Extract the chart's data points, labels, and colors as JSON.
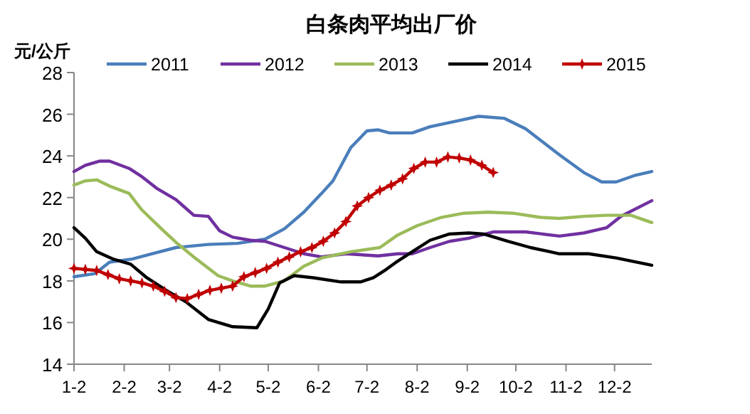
{
  "chart_data": {
    "type": "line",
    "title": "白条肉平均出厂价",
    "ylabel": "元/公斤",
    "xlim": [
      "--01-02",
      "--12-25"
    ],
    "ylim": [
      14,
      28
    ],
    "yticks": [
      14,
      16,
      18,
      20,
      22,
      24,
      26,
      28
    ],
    "xticks": [
      {
        "value": "--01-02",
        "label": "1-2"
      },
      {
        "value": "--02-02",
        "label": "2-2"
      },
      {
        "value": "--03-02",
        "label": "3-2"
      },
      {
        "value": "--04-02",
        "label": "4-2"
      },
      {
        "value": "--05-02",
        "label": "5-2"
      },
      {
        "value": "--06-02",
        "label": "6-2"
      },
      {
        "value": "--07-02",
        "label": "7-2"
      },
      {
        "value": "--08-02",
        "label": "8-2"
      },
      {
        "value": "--09-02",
        "label": "9-2"
      },
      {
        "value": "--10-02",
        "label": "10-2"
      },
      {
        "value": "--11-02",
        "label": "11-2"
      },
      {
        "value": "--12-02",
        "label": "12-2"
      }
    ],
    "grid": false,
    "legend": "top",
    "marker": "none",
    "line_style": "solid",
    "series": [
      {
        "name": "2011",
        "color": "#4a7ebb",
        "x": [
          "--01-02",
          "--01-15",
          "--01-24",
          "--02-07",
          "--02-19",
          "--03-06",
          "--03-26",
          "--04-13",
          "--04-30",
          "--05-12",
          "--05-24",
          "--06-04",
          "--06-11",
          "--06-22",
          "--07-02",
          "--07-09",
          "--07-16",
          "--07-30",
          "--08-10",
          "--08-25",
          "--09-09",
          "--09-25",
          "--10-08",
          "--10-29",
          "--11-13",
          "--11-24",
          "--12-03",
          "--12-14",
          "--12-25"
        ],
        "values": [
          18.2,
          18.35,
          18.9,
          19.05,
          19.3,
          19.6,
          19.75,
          19.8,
          20.0,
          20.5,
          21.3,
          22.2,
          22.8,
          24.4,
          25.2,
          25.25,
          25.1,
          25.1,
          25.4,
          25.65,
          25.9,
          25.8,
          25.3,
          24.05,
          23.2,
          22.75,
          22.75,
          23.05,
          23.25
        ]
      },
      {
        "name": "2012",
        "color": "#7030a0",
        "x": [
          "--01-02",
          "--01-09",
          "--01-18",
          "--01-24",
          "--02-05",
          "--02-13",
          "--02-22",
          "--03-06",
          "--03-17",
          "--03-26",
          "--04-02",
          "--04-10",
          "--04-21",
          "--04-30",
          "--05-12",
          "--05-24",
          "--06-04",
          "--06-19",
          "--07-09",
          "--07-21",
          "--07-30",
          "--08-10",
          "--08-22",
          "--09-03",
          "--09-18",
          "--10-08",
          "--10-29",
          "--11-13",
          "--11-27",
          "--12-06",
          "--12-25"
        ],
        "values": [
          23.25,
          23.55,
          23.75,
          23.75,
          23.4,
          23.0,
          22.45,
          21.9,
          21.15,
          21.1,
          20.4,
          20.1,
          19.95,
          19.9,
          19.6,
          19.3,
          19.15,
          19.3,
          19.2,
          19.3,
          19.3,
          19.6,
          19.9,
          20.05,
          20.35,
          20.35,
          20.15,
          20.3,
          20.55,
          21.1,
          21.85
        ]
      },
      {
        "name": "2013",
        "color": "#9bbb59",
        "x": [
          "--01-02",
          "--01-09",
          "--01-16",
          "--01-24",
          "--02-05",
          "--02-13",
          "--02-25",
          "--03-06",
          "--03-17",
          "--04-01",
          "--04-10",
          "--04-21",
          "--04-30",
          "--05-12",
          "--05-24",
          "--06-04",
          "--06-22",
          "--07-10",
          "--07-21",
          "--08-02",
          "--08-17",
          "--08-31",
          "--09-15",
          "--09-30",
          "--10-17",
          "--10-29",
          "--11-13",
          "--11-27",
          "--12-12",
          "--12-25"
        ],
        "values": [
          22.6,
          22.8,
          22.85,
          22.55,
          22.2,
          21.4,
          20.5,
          19.85,
          19.15,
          18.25,
          18.0,
          17.75,
          17.75,
          18.0,
          18.7,
          19.1,
          19.4,
          19.6,
          20.2,
          20.65,
          21.05,
          21.25,
          21.3,
          21.25,
          21.05,
          21.0,
          21.1,
          21.15,
          21.15,
          20.8
        ]
      },
      {
        "name": "2014",
        "color": "#000000",
        "x": [
          "--01-02",
          "--01-09",
          "--01-16",
          "--01-26",
          "--02-06",
          "--02-16",
          "--02-28",
          "--03-12",
          "--03-26",
          "--04-10",
          "--04-25",
          "--05-02",
          "--05-09",
          "--05-18",
          "--05-30",
          "--06-16",
          "--06-28",
          "--07-06",
          "--07-13",
          "--07-21",
          "--07-30",
          "--08-10",
          "--08-22",
          "--09-03",
          "--09-12",
          "--09-27",
          "--10-11",
          "--10-29",
          "--11-16",
          "--12-03",
          "--12-25"
        ],
        "values": [
          20.55,
          20.05,
          19.4,
          19.05,
          18.8,
          18.15,
          17.55,
          17.0,
          16.15,
          15.8,
          15.75,
          16.65,
          17.9,
          18.25,
          18.15,
          17.95,
          17.95,
          18.15,
          18.5,
          18.95,
          19.4,
          19.95,
          20.25,
          20.3,
          20.25,
          19.9,
          19.6,
          19.3,
          19.3,
          19.1,
          18.75
        ]
      },
      {
        "name": "2015",
        "color": "#c00000",
        "marker": "star",
        "x": [
          "--01-02",
          "--01-09",
          "--01-16",
          "--01-23",
          "--01-30",
          "--02-06",
          "--02-13",
          "--02-20",
          "--02-27",
          "--03-06",
          "--03-13",
          "--03-20",
          "--03-27",
          "--04-03",
          "--04-10",
          "--04-17",
          "--04-24",
          "--05-01",
          "--05-08",
          "--05-15",
          "--05-22",
          "--05-29",
          "--06-05",
          "--06-12",
          "--06-19",
          "--06-26",
          "--07-03",
          "--07-10",
          "--07-17",
          "--07-24",
          "--07-31",
          "--08-07",
          "--08-14",
          "--08-21",
          "--08-28",
          "--09-04",
          "--09-11",
          "--09-18"
        ],
        "values": [
          18.6,
          18.55,
          18.5,
          18.3,
          18.1,
          18.0,
          17.9,
          17.75,
          17.5,
          17.2,
          17.15,
          17.35,
          17.55,
          17.65,
          17.75,
          18.2,
          18.4,
          18.6,
          18.9,
          19.15,
          19.4,
          19.6,
          19.9,
          20.3,
          20.85,
          21.6,
          22.0,
          22.35,
          22.6,
          22.9,
          23.4,
          23.7,
          23.7,
          23.95,
          23.9,
          23.8,
          23.55,
          23.2
        ]
      }
    ]
  }
}
